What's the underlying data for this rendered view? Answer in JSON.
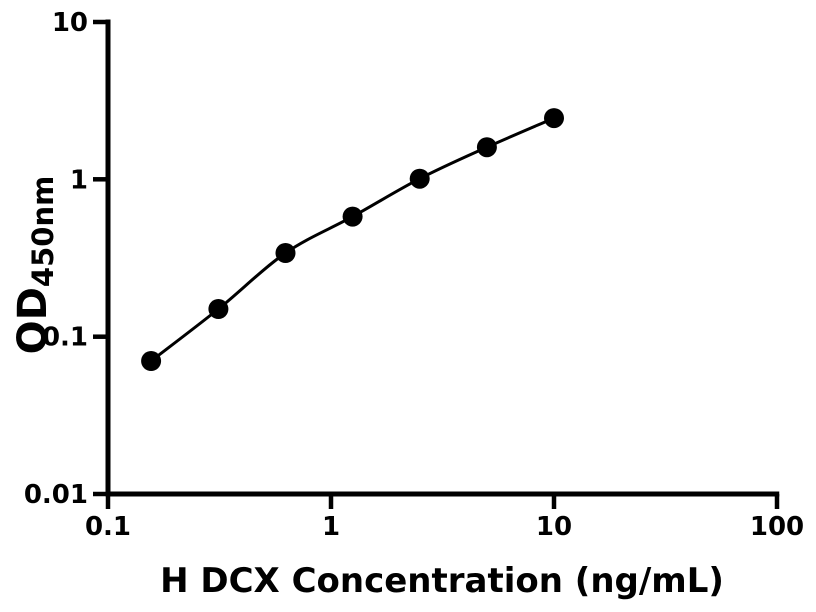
{
  "chart_data": {
    "type": "line",
    "title": "",
    "xlabel": "H DCX Concentration (ng/mL)",
    "ylabel_main": "OD",
    "ylabel_sub": "450nm",
    "x_scale": "log10",
    "y_scale": "log10",
    "xlim": [
      0.1,
      100
    ],
    "ylim": [
      0.01,
      10
    ],
    "grid": false,
    "legend": "none",
    "x_ticks": {
      "values": [
        0.1,
        1,
        10,
        100
      ],
      "labels": [
        "0.1",
        "1",
        "10",
        "100"
      ]
    },
    "y_ticks": {
      "values": [
        0.01,
        0.1,
        1,
        10
      ],
      "labels": [
        "0.01",
        "0.1",
        "1",
        "10"
      ]
    },
    "series": [
      {
        "marker": "filled-circle",
        "line": "smooth",
        "color": "#000000",
        "x": [
          0.156,
          0.3125,
          0.625,
          1.25,
          2.5,
          5,
          10
        ],
        "y": [
          0.07,
          0.15,
          0.34,
          0.58,
          1.01,
          1.6,
          2.45
        ]
      }
    ],
    "colors": {
      "axis": "#000000",
      "curve": "#000000",
      "marker": "#000000",
      "text": "#000000",
      "background": "#ffffff"
    }
  }
}
